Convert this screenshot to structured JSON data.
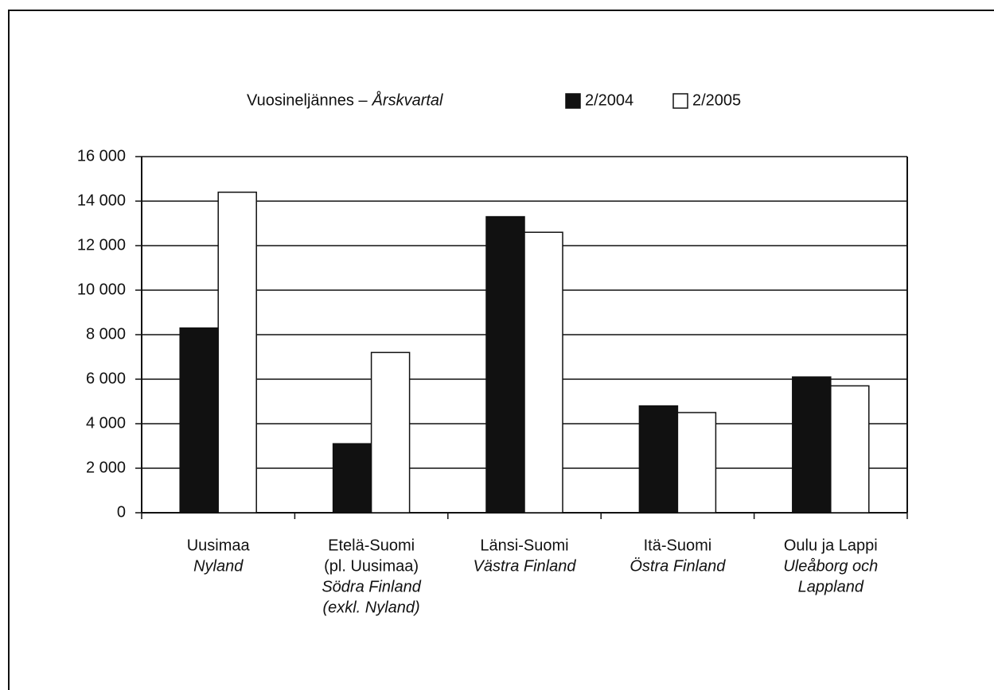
{
  "chart_data": {
    "type": "bar",
    "legend_title": {
      "fi": "Vuosineljännes –",
      "sv": "Årskvartal"
    },
    "categories": [
      {
        "fi": [
          "Uusimaa"
        ],
        "sv": [
          "Nyland"
        ]
      },
      {
        "fi": [
          "Etelä-Suomi",
          "(pl. Uusimaa)"
        ],
        "sv": [
          "Södra Finland",
          "(exkl. Nyland)"
        ]
      },
      {
        "fi": [
          "Länsi-Suomi"
        ],
        "sv": [
          "Västra Finland"
        ]
      },
      {
        "fi": [
          "Itä-Suomi"
        ],
        "sv": [
          "Östra Finland"
        ]
      },
      {
        "fi": [
          "Oulu ja Lappi"
        ],
        "sv": [
          "Uleåborg och",
          "Lappland"
        ]
      }
    ],
    "series": [
      {
        "name": "2/2004",
        "color": "#111111",
        "values": [
          8300,
          3100,
          13300,
          4800,
          6100
        ]
      },
      {
        "name": "2/2005",
        "color": "#ffffff",
        "values": [
          14400,
          7200,
          12600,
          4500,
          5700
        ]
      }
    ],
    "ylim": [
      0,
      16000
    ],
    "yticks": [
      0,
      {
        "value": 2000,
        "label": "2 000"
      },
      {
        "value": 4000,
        "label": "4 000"
      },
      {
        "value": 6000,
        "label": "6 000"
      },
      {
        "value": 8000,
        "label": "8 000"
      },
      {
        "value": 10000,
        "label": "10 000"
      },
      {
        "value": 12000,
        "label": "12 000"
      },
      {
        "value": 14000,
        "label": "14 000"
      },
      {
        "value": 16000,
        "label": "16 000"
      }
    ],
    "grid": true
  }
}
